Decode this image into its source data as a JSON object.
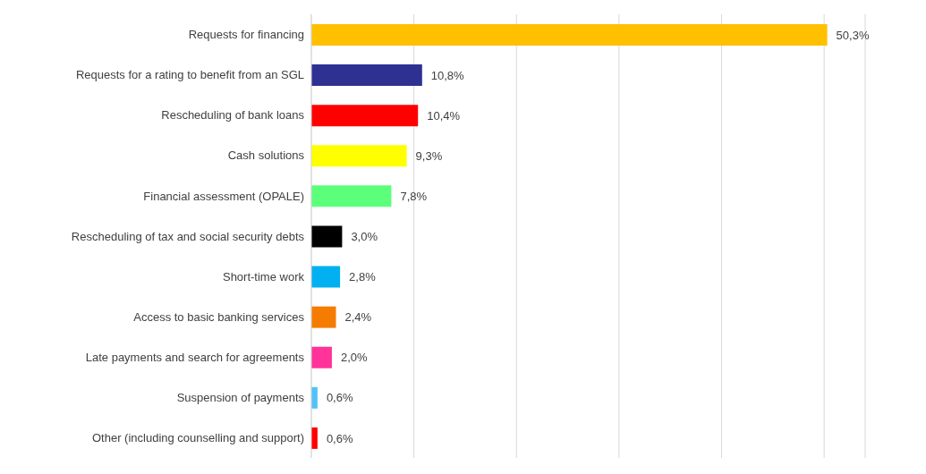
{
  "chart_data": {
    "type": "bar",
    "orientation": "horizontal",
    "categories": [
      "Requests for financing",
      "Requests for a rating to benefit from an SGL",
      "Rescheduling of bank loans",
      "Cash solutions",
      "Financial assessment (OPALE)",
      "Rescheduling of tax and social security debts",
      "Short-time work",
      "Access to basic banking services",
      "Late payments and search for agreements",
      "Suspension of payments",
      "Other (including counselling and support)"
    ],
    "values": [
      50.3,
      10.8,
      10.4,
      9.3,
      7.8,
      3.0,
      2.8,
      2.4,
      2.0,
      0.6,
      0.6
    ],
    "value_labels": [
      "50,3%",
      "10,8%",
      "10,4%",
      "9,3%",
      "7,8%",
      "3,0%",
      "2,8%",
      "2,4%",
      "2,0%",
      "0,6%",
      "0,6%"
    ],
    "colors": [
      "#ffc000",
      "#2e3192",
      "#ff0000",
      "#ffff00",
      "#5cff7a",
      "#000000",
      "#00b0f0",
      "#f57c00",
      "#ff3399",
      "#4fc3f7",
      "#ff0000"
    ],
    "xlim": [
      0,
      54
    ],
    "xticks": [
      {
        "value": 0,
        "label": null
      },
      {
        "value": 10,
        "label": null
      },
      {
        "value": 20,
        "label": null
      },
      {
        "value": 30,
        "label": null
      },
      {
        "value": 40,
        "label": null
      },
      {
        "value": 50,
        "label": null
      }
    ],
    "grid": "x",
    "tick_labels": "y",
    "legend": false
  }
}
